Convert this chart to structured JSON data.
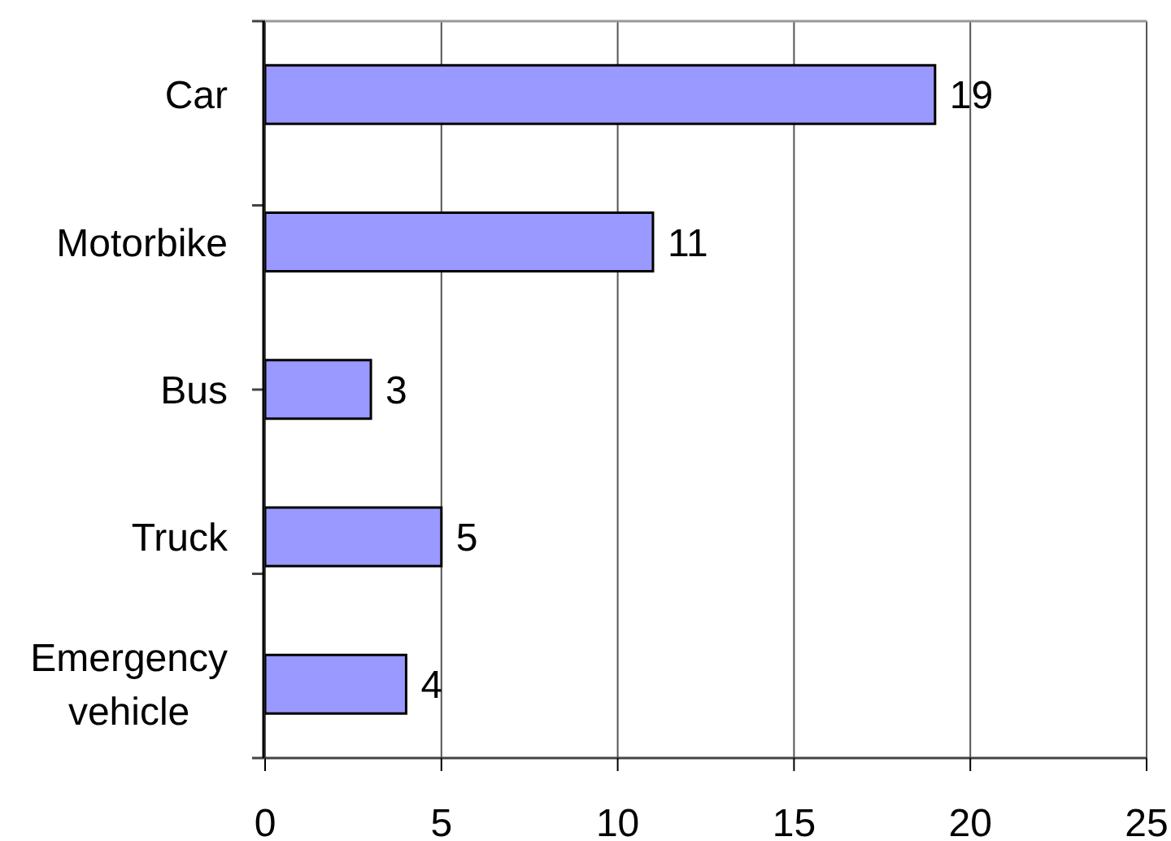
{
  "chart_data": {
    "type": "bar",
    "orientation": "horizontal",
    "categories": [
      "Car",
      "Motorbike",
      "Bus",
      "Truck",
      "Emergency vehicle"
    ],
    "values": [
      19,
      11,
      3,
      5,
      4
    ],
    "color": "#9999ff",
    "xlim": [
      0,
      25
    ],
    "xticks": [
      0,
      5,
      10,
      15,
      20,
      25
    ],
    "grid": "x",
    "data_labels": true
  }
}
